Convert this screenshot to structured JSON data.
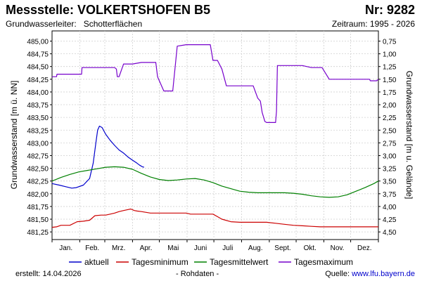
{
  "header": {
    "station": "Messstelle: VOLKERTSHOFEN B5",
    "number": "Nr: 9282",
    "aquifer_label": "Grundwasserleiter:",
    "aquifer_value": "Schotterflächen",
    "period": "Zeitraum: 1995 - 2026"
  },
  "footer": {
    "created": "erstellt:  14.04.2026",
    "raw": "- Rohdaten -",
    "source_label": "Quelle: ",
    "source_url": "www.lfu.bayern.de"
  },
  "chart_data": {
    "type": "line",
    "ylabel_left": "Grundwasserstand [m ü. NN]",
    "ylabel_right": "Grundwasserstand [m u. Gelände]",
    "ylim_left": [
      481.1,
      485.2
    ],
    "yticks_left": [
      "485,00",
      "484,75",
      "484,50",
      "484,25",
      "484,00",
      "483,75",
      "483,50",
      "483,25",
      "483,00",
      "482,75",
      "482,50",
      "482,25",
      "482,00",
      "481,75",
      "481,50",
      "481,25"
    ],
    "yticks_left_values": [
      485.0,
      484.75,
      484.5,
      484.25,
      484.0,
      483.75,
      483.5,
      483.25,
      483.0,
      482.75,
      482.5,
      482.25,
      482.0,
      481.75,
      481.5,
      481.25
    ],
    "yticks_right": [
      "0,75",
      "1,00",
      "1,25",
      "1,50",
      "1,75",
      "2,00",
      "2,25",
      "2,50",
      "2,75",
      "3,00",
      "3,25",
      "3,50",
      "3,75",
      "4,00",
      "4,25",
      "4,50"
    ],
    "xlim_days": [
      0,
      365
    ],
    "months": [
      "Jan.",
      "Feb.",
      "Mrz.",
      "Apr.",
      "Mai",
      "Juni",
      "Juli",
      "Aug.",
      "Sept.",
      "Okt.",
      "Nov.",
      "Dez."
    ],
    "grid": true,
    "legend_position": "bottom",
    "series": [
      {
        "name": "aktuell",
        "color": "#0000cc",
        "x": [
          0,
          8,
          15,
          22,
          27,
          35,
          42,
          46,
          49,
          51,
          53,
          56,
          60,
          65,
          70,
          75,
          80,
          85,
          90,
          95,
          98,
          101,
          103
        ],
        "y": [
          482.2,
          482.17,
          482.14,
          482.11,
          482.12,
          482.17,
          482.3,
          482.6,
          483.0,
          483.25,
          483.33,
          483.3,
          483.17,
          483.05,
          482.95,
          482.86,
          482.8,
          482.72,
          482.66,
          482.6,
          482.56,
          482.53,
          482.52
        ]
      },
      {
        "name": "Tagesminimum",
        "color": "#cc0000",
        "x": [
          0,
          5,
          10,
          15,
          20,
          28,
          35,
          42,
          48,
          55,
          60,
          65,
          70,
          75,
          80,
          85,
          88,
          92,
          95,
          100,
          110,
          120,
          130,
          140,
          150,
          155,
          160,
          170,
          180,
          185,
          190,
          200,
          210,
          220,
          230,
          240,
          250,
          260,
          270,
          280,
          290,
          300,
          310,
          320,
          330,
          340,
          350,
          365
        ],
        "y": [
          481.34,
          481.35,
          481.38,
          481.38,
          481.38,
          481.45,
          481.46,
          481.48,
          481.57,
          481.58,
          481.58,
          481.6,
          481.62,
          481.65,
          481.67,
          481.69,
          481.7,
          481.67,
          481.66,
          481.65,
          481.62,
          481.62,
          481.62,
          481.62,
          481.62,
          481.6,
          481.6,
          481.6,
          481.6,
          481.55,
          481.5,
          481.45,
          481.44,
          481.44,
          481.44,
          481.44,
          481.42,
          481.4,
          481.38,
          481.37,
          481.36,
          481.35,
          481.35,
          481.35,
          481.35,
          481.35,
          481.35,
          481.35
        ]
      },
      {
        "name": "Tagesmittelwert",
        "color": "#008000",
        "x": [
          0,
          10,
          20,
          30,
          40,
          50,
          60,
          70,
          80,
          90,
          100,
          110,
          120,
          130,
          140,
          150,
          160,
          170,
          180,
          190,
          200,
          210,
          220,
          230,
          240,
          250,
          260,
          270,
          280,
          290,
          300,
          310,
          320,
          330,
          340,
          350,
          360,
          365
        ],
        "y": [
          482.25,
          482.32,
          482.38,
          482.43,
          482.46,
          482.49,
          482.52,
          482.53,
          482.52,
          482.48,
          482.4,
          482.33,
          482.28,
          482.26,
          482.27,
          482.29,
          482.3,
          482.27,
          482.22,
          482.15,
          482.1,
          482.05,
          482.03,
          482.02,
          482.02,
          482.02,
          482.02,
          482.01,
          481.99,
          481.96,
          481.94,
          481.93,
          481.94,
          481.98,
          482.05,
          482.12,
          482.2,
          482.25
        ]
      },
      {
        "name": "Tagesmaximum",
        "color": "#7700cc",
        "x": [
          0,
          5,
          5.5,
          10,
          15,
          20,
          25,
          30,
          33,
          33.5,
          40,
          50,
          60,
          65,
          70,
          72,
          73,
          75,
          80,
          90,
          100,
          110,
          115,
          116,
          118,
          125,
          130,
          134,
          135,
          140,
          150,
          160,
          170,
          172,
          175,
          177,
          180,
          185,
          190,
          195,
          196,
          200,
          210,
          220,
          225,
          230,
          233,
          235,
          238,
          240,
          245,
          250,
          251,
          252,
          260,
          270,
          280,
          290,
          300,
          301,
          302,
          310,
          320,
          330,
          340,
          350,
          355,
          356,
          360,
          363,
          365
        ],
        "y": [
          484.3,
          484.3,
          484.35,
          484.35,
          484.35,
          484.35,
          484.35,
          484.35,
          484.35,
          484.48,
          484.48,
          484.48,
          484.48,
          484.48,
          484.48,
          484.45,
          484.3,
          484.3,
          484.55,
          484.55,
          484.58,
          484.58,
          484.58,
          484.58,
          484.3,
          484.02,
          484.02,
          484.02,
          484.02,
          484.9,
          484.93,
          484.93,
          484.93,
          484.93,
          484.93,
          484.93,
          484.62,
          484.62,
          484.45,
          484.12,
          484.12,
          484.12,
          484.12,
          484.12,
          484.12,
          483.88,
          483.82,
          483.6,
          483.42,
          483.4,
          483.4,
          483.4,
          483.62,
          484.52,
          484.52,
          484.52,
          484.52,
          484.48,
          484.48,
          484.48,
          484.48,
          484.25,
          484.25,
          484.25,
          484.25,
          484.25,
          484.25,
          484.22,
          484.22,
          484.22,
          484.25
        ]
      }
    ]
  }
}
